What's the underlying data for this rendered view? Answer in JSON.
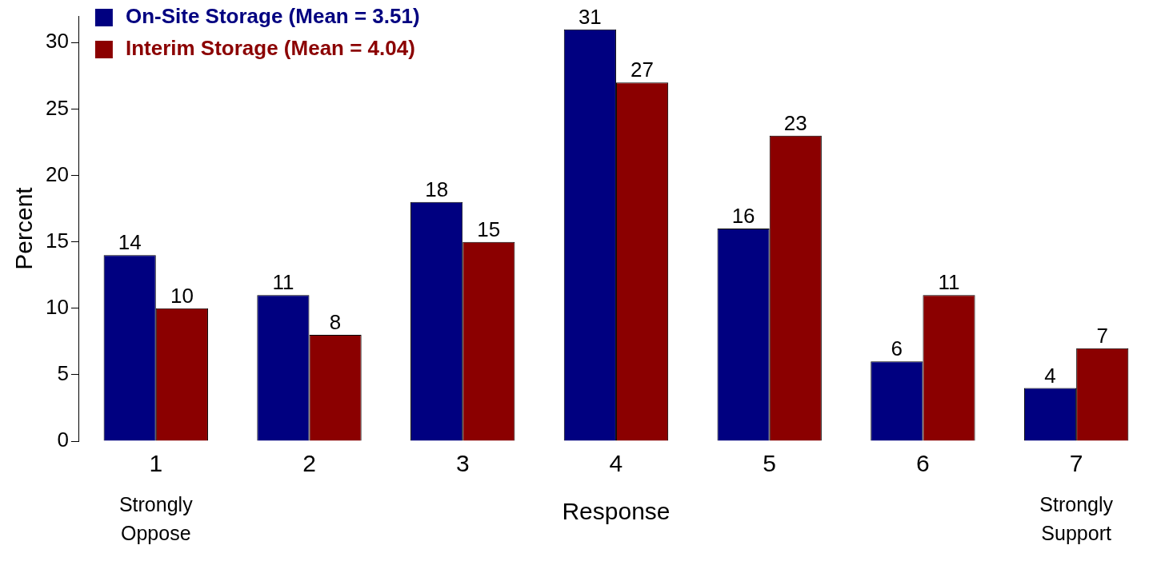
{
  "chart_data": {
    "type": "bar",
    "xlabel": "Response",
    "ylabel": "Percent",
    "categories": [
      "1",
      "2",
      "3",
      "4",
      "5",
      "6",
      "7"
    ],
    "series": [
      {
        "name": "On-Site Storage (Mean = 3.51)",
        "color": "#000080",
        "values": [
          14,
          11,
          18,
          31,
          16,
          6,
          4
        ]
      },
      {
        "name": "Interim Storage (Mean = 4.04)",
        "color": "#8b0000",
        "values": [
          10,
          8,
          15,
          27,
          23,
          11,
          7
        ]
      }
    ],
    "ylim": [
      0,
      32
    ],
    "yticks": [
      0,
      5,
      10,
      15,
      20,
      25,
      30
    ],
    "grid": false,
    "legend": "top left",
    "data_labels": true,
    "annotations": [
      "Strongly Oppose",
      "Strongly Support"
    ]
  }
}
